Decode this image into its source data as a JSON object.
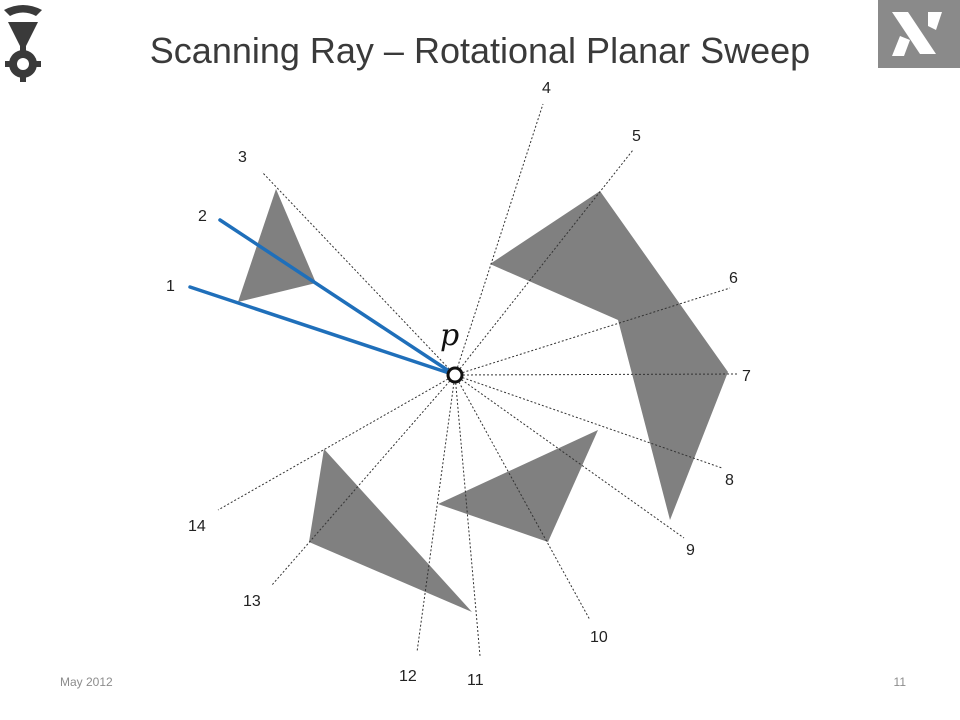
{
  "slide": {
    "title": "Scanning Ray – Rotational Planar Sweep",
    "footer_date": "May 2012",
    "page_number": "11",
    "point_label": "p"
  },
  "logos": {
    "left": "technion-logo-icon",
    "right": "department-logo-icon"
  },
  "colors": {
    "obstacle": "#808080",
    "active_ray": "#1f6fba",
    "dashed_ray": "#333333",
    "title_text": "#3a3a3a"
  },
  "rays": [
    {
      "label": "1",
      "active": true
    },
    {
      "label": "2",
      "active": true
    },
    {
      "label": "3",
      "active": false
    },
    {
      "label": "4",
      "active": false
    },
    {
      "label": "5",
      "active": false
    },
    {
      "label": "6",
      "active": false
    },
    {
      "label": "7",
      "active": false
    },
    {
      "label": "8",
      "active": false
    },
    {
      "label": "9",
      "active": false
    },
    {
      "label": "10",
      "active": false
    },
    {
      "label": "11",
      "active": false
    },
    {
      "label": "12",
      "active": false
    },
    {
      "label": "13",
      "active": false
    },
    {
      "label": "14",
      "active": false
    }
  ]
}
